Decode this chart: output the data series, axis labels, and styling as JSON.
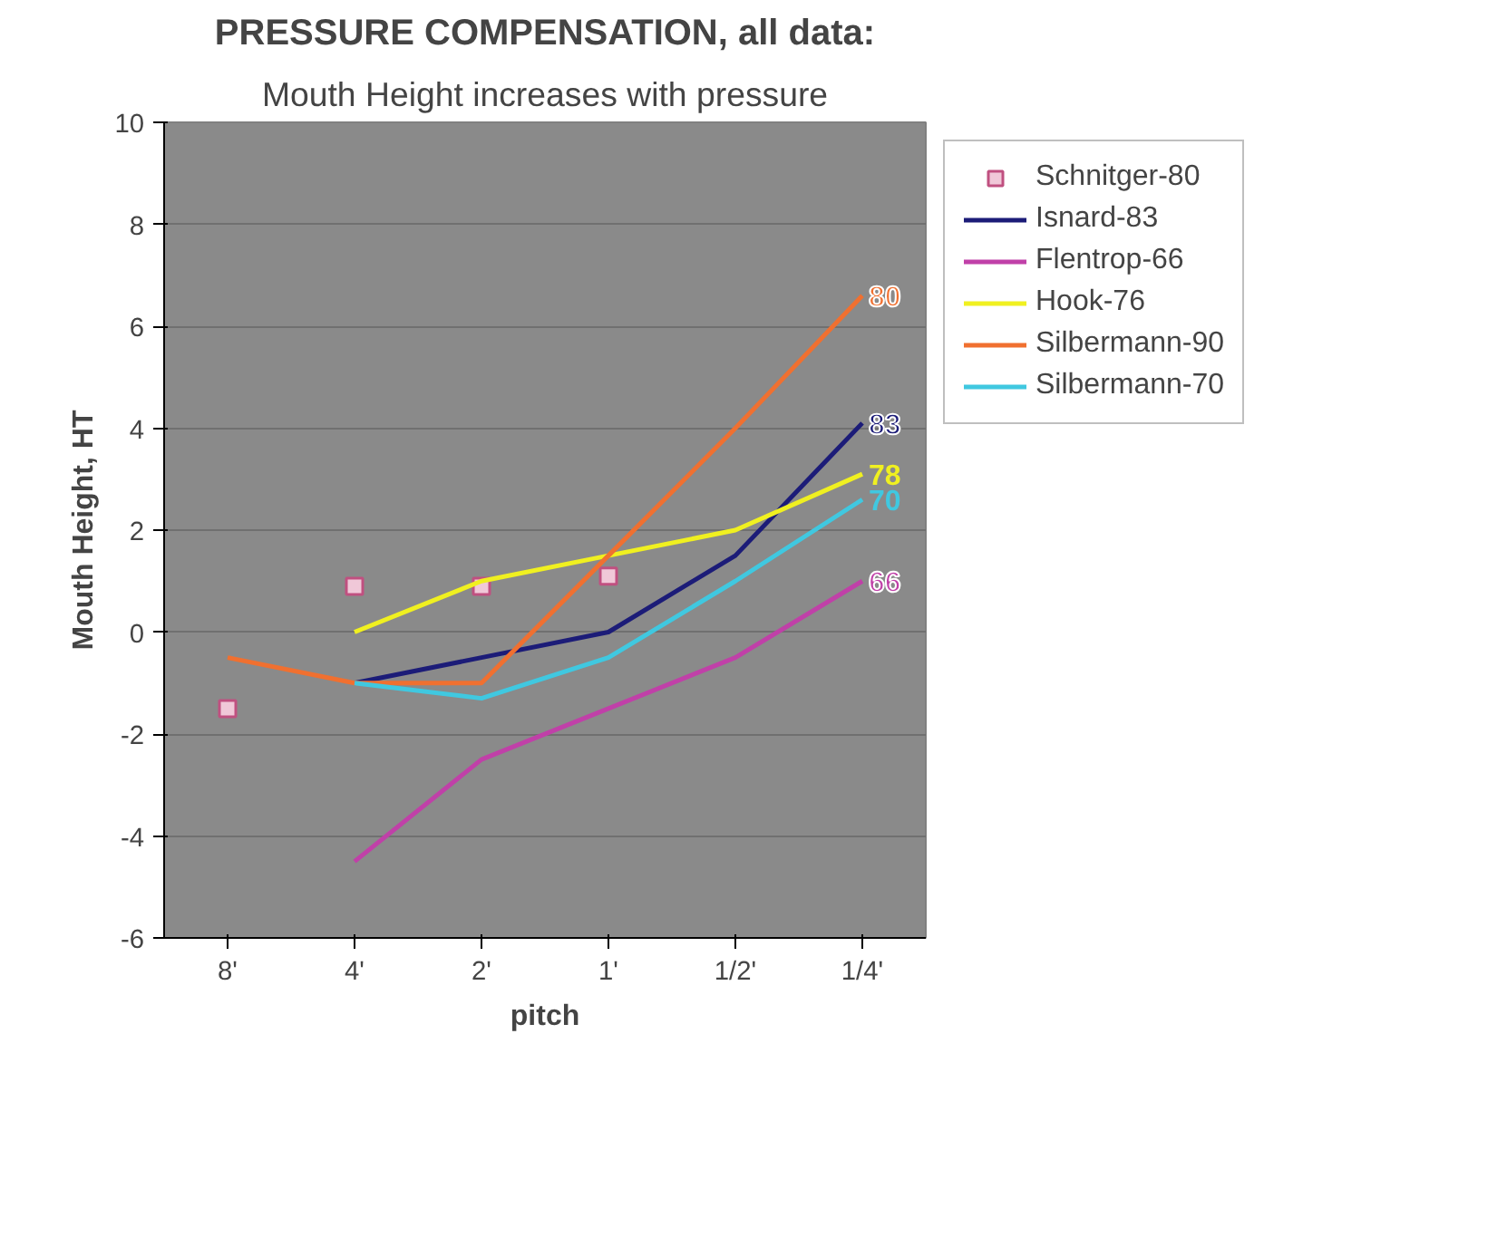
{
  "chart_data": {
    "type": "line",
    "title": "PRESSURE COMPENSATION, all data:",
    "subtitle": "Mouth Height increases with pressure",
    "xlabel": "pitch",
    "ylabel": "Mouth Height, HT",
    "categories": [
      "8'",
      "4'",
      "2'",
      "1'",
      "1/2'",
      "1/4'"
    ],
    "ylim": [
      -6,
      10
    ],
    "yticks": [
      -6,
      -4,
      -2,
      0,
      2,
      4,
      6,
      8,
      10
    ],
    "grid": "y",
    "legend": "right",
    "series": [
      {
        "name": "Schnitger-80",
        "type": "scatter",
        "marker": "square",
        "color": "#c05080",
        "values": [
          -1.5,
          0.9,
          0.9,
          1.1,
          null,
          null
        ]
      },
      {
        "name": "Isnard-83",
        "color": "#1c1c78",
        "values": [
          null,
          -1,
          -0.5,
          0,
          1.5,
          4.1
        ]
      },
      {
        "name": "Flentrop-66",
        "color": "#c040a8",
        "values": [
          null,
          -4.5,
          -2.5,
          -1.5,
          -0.5,
          1
        ]
      },
      {
        "name": "Hook-76",
        "color": "#f0f020",
        "values": [
          null,
          0,
          1,
          1.5,
          2,
          3.1
        ]
      },
      {
        "name": "Silbermann-90",
        "color": "#f07030",
        "values": [
          -0.5,
          -1,
          -1,
          1.5,
          4,
          6.6
        ]
      },
      {
        "name": "Silbermann-70",
        "color": "#40c8e0",
        "values": [
          null,
          -1,
          -1.3,
          -0.5,
          1,
          2.6
        ]
      }
    ],
    "annotations": [
      {
        "text": "80",
        "x": "1/4'",
        "y": 6.6
      },
      {
        "text": "83",
        "x": "1/4'",
        "y": 4.1
      },
      {
        "text": "78",
        "x": "1/4'",
        "y": 3.1
      },
      {
        "text": "70",
        "x": "1/4'",
        "y": 2.6
      },
      {
        "text": "66",
        "x": "1/4'",
        "y": 1
      }
    ]
  }
}
